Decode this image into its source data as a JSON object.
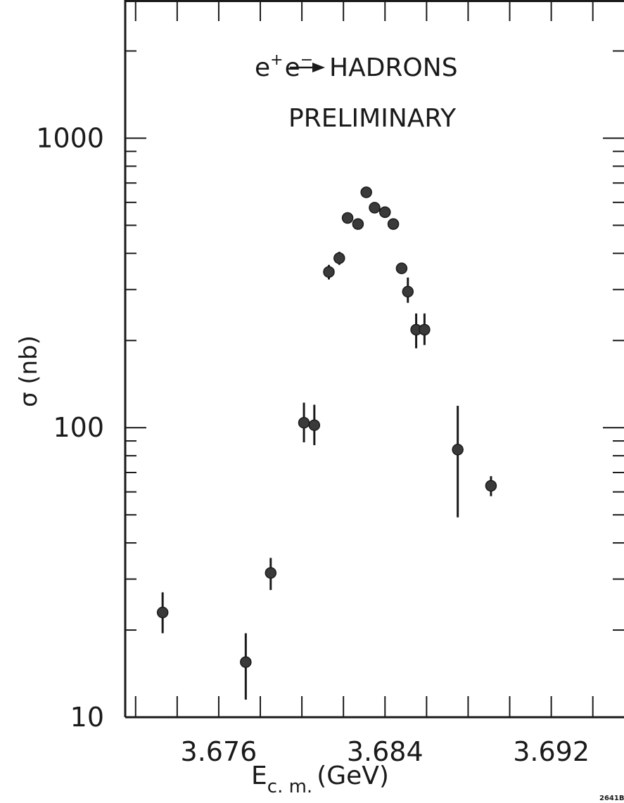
{
  "chart_data": {
    "type": "scatter",
    "annotation_reaction": {
      "lead": "e",
      "sup1": "+",
      "mid": "e",
      "sup2": "−",
      "product": "HADRONS"
    },
    "annotation_status": "PRELIMINARY",
    "xlabel": {
      "main": "E",
      "sub": "c. m.",
      "unit": "(GeV)"
    },
    "ylabel": "σ (nb)",
    "figure_id": "2641B",
    "y_scale": "log",
    "xlim": [
      3.6715,
      3.6955
    ],
    "ylim": [
      10,
      3000
    ],
    "x_ticks": [
      3.676,
      3.684,
      3.692
    ],
    "x_tick_labels": [
      "3.676",
      "3.684",
      "3.692"
    ],
    "y_ticks": [
      10,
      100,
      1000
    ],
    "y_tick_labels": [
      "10",
      "100",
      "1000"
    ],
    "grid": false,
    "series": [
      {
        "points": [
          {
            "x": 3.6733,
            "y": 23,
            "err_lo": 3.5,
            "err_hi": 4
          },
          {
            "x": 3.6773,
            "y": 15.5,
            "err_lo": 4,
            "err_hi": 4
          },
          {
            "x": 3.6785,
            "y": 31.5,
            "err_lo": 4,
            "err_hi": 4
          },
          {
            "x": 3.6801,
            "y": 104,
            "err_lo": 15,
            "err_hi": 18
          },
          {
            "x": 3.6806,
            "y": 102,
            "err_lo": 15,
            "err_hi": 18
          },
          {
            "x": 3.6813,
            "y": 345,
            "err_lo": 20,
            "err_hi": 20
          },
          {
            "x": 3.6818,
            "y": 385,
            "err_lo": 20,
            "err_hi": 20
          },
          {
            "x": 3.6822,
            "y": 530,
            "err_lo": 15,
            "err_hi": 15
          },
          {
            "x": 3.6827,
            "y": 505,
            "err_lo": 15,
            "err_hi": 15
          },
          {
            "x": 3.6831,
            "y": 650,
            "err_lo": 15,
            "err_hi": 15
          },
          {
            "x": 3.6835,
            "y": 575,
            "err_lo": 15,
            "err_hi": 15
          },
          {
            "x": 3.684,
            "y": 555,
            "err_lo": 15,
            "err_hi": 15
          },
          {
            "x": 3.6844,
            "y": 505,
            "err_lo": 15,
            "err_hi": 15
          },
          {
            "x": 3.6848,
            "y": 355,
            "err_lo": 10,
            "err_hi": 10
          },
          {
            "x": 3.6851,
            "y": 295,
            "err_lo": 25,
            "err_hi": 35
          },
          {
            "x": 3.6855,
            "y": 218,
            "err_lo": 30,
            "err_hi": 30
          },
          {
            "x": 3.6859,
            "y": 218,
            "err_lo": 25,
            "err_hi": 30
          },
          {
            "x": 3.6875,
            "y": 84,
            "err_lo": 35,
            "err_hi": 35
          },
          {
            "x": 3.6891,
            "y": 63,
            "err_lo": 5,
            "err_hi": 5
          }
        ]
      }
    ]
  }
}
